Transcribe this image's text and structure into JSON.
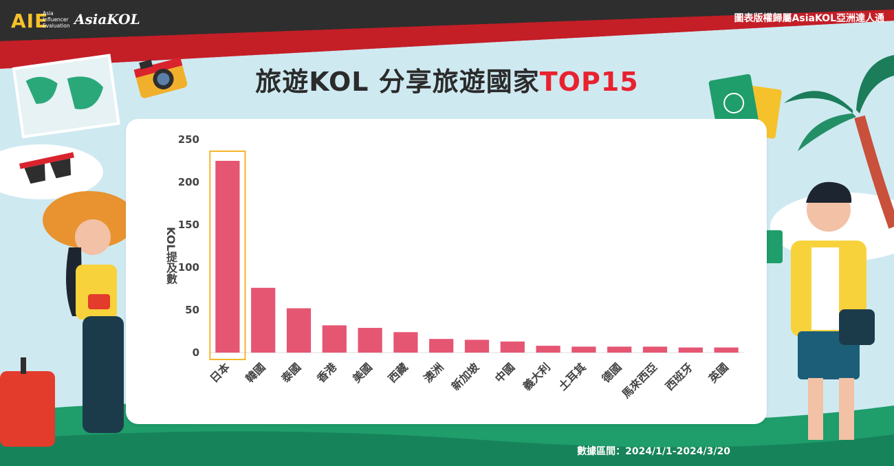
{
  "header": {
    "logo_text": "AIE",
    "logo_sub": [
      "Asia",
      "Influencer",
      "Evaluation"
    ],
    "brand_text": "AsiaKOL",
    "copyright": "圖表版權歸屬AsiaKOL亞洲達人通"
  },
  "title": {
    "main": "旅遊KOL 分享旅遊國家",
    "highlight": "TOP15"
  },
  "footer": {
    "date_range": "數據區間：2024/1/1-2024/3/20"
  },
  "colors": {
    "bar": "#e55672",
    "highlight_box": "#f2b62a",
    "title_highlight": "#e8222f",
    "header_red": "#d9232d"
  },
  "chart_data": {
    "type": "bar",
    "title": "旅遊KOL 分享旅遊國家TOP15",
    "xlabel": "",
    "ylabel": "KOL提及數",
    "ylim": [
      0,
      250
    ],
    "yticks": [
      0,
      50,
      100,
      150,
      200,
      250
    ],
    "categories": [
      "日本",
      "韓國",
      "泰國",
      "香港",
      "美國",
      "西藏",
      "澳洲",
      "新加坡",
      "中國",
      "義大利",
      "土耳其",
      "德國",
      "馬來西亞",
      "西班牙",
      "英國"
    ],
    "values": [
      225,
      76,
      52,
      32,
      29,
      24,
      16,
      15,
      13,
      8,
      7,
      7,
      7,
      6,
      6
    ],
    "highlighted_category": "日本",
    "legend": "none",
    "grid": false
  }
}
